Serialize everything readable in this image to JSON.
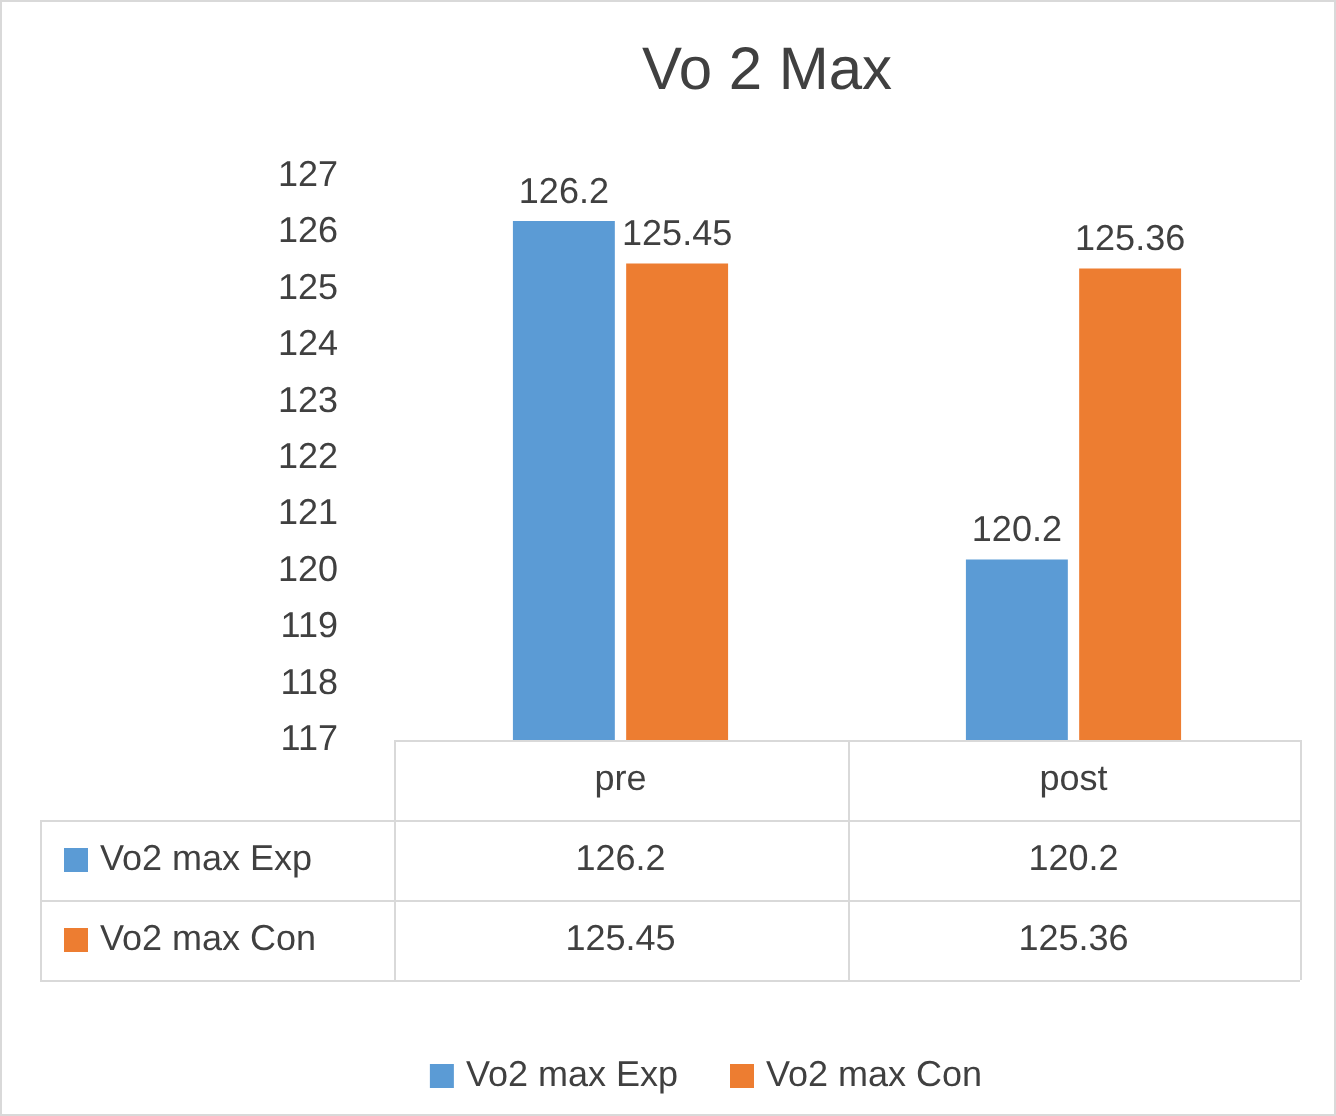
{
  "chart_data": {
    "type": "bar",
    "title": "Vo 2 Max",
    "categories": [
      "pre",
      "post"
    ],
    "series": [
      {
        "name": "Vo2 max Exp",
        "color": "#5b9bd5",
        "values": [
          126.2,
          120.2
        ],
        "value_labels": [
          "126.2",
          "120.2"
        ]
      },
      {
        "name": "Vo2 max Con",
        "color": "#ed7d31",
        "values": [
          125.45,
          125.36
        ],
        "value_labels": [
          "125.45",
          "125.36"
        ]
      }
    ],
    "ylim": [
      117,
      127
    ],
    "yticks": [
      117,
      118,
      119,
      120,
      121,
      122,
      123,
      124,
      125,
      126,
      127
    ],
    "grid": false,
    "legend": "bottom",
    "annotations": [
      "126.2",
      "120.2",
      "125.45",
      "125.36"
    ]
  }
}
